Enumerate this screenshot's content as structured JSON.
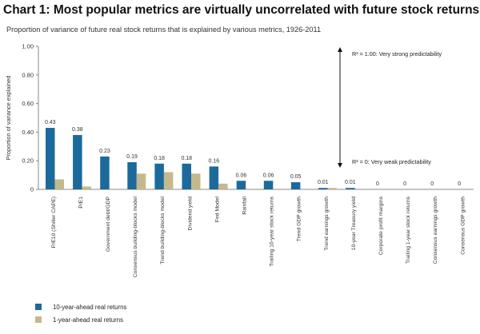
{
  "header": {
    "title": "Chart 1:  Most popular metrics are virtually uncorrelated with future stock returns",
    "subtitle": "Proportion of variance of future real stock returns that is explained by various metrics, 1926-2011"
  },
  "colors": {
    "series1": "#1c6a9c",
    "series2": "#c4b98c",
    "axis": "#888888"
  },
  "annotations": {
    "strong": "R² = 1.00: Very strong predictability",
    "weak": "R² = 0: Very weak predictability"
  },
  "chart_data": {
    "type": "bar",
    "title": "Chart 1:  Most popular metrics are virtually uncorrelated with future stock returns",
    "subtitle": "Proportion of variance of future real stock returns that is explained by various metrics, 1926-2011",
    "ylabel": "Proportion of variance explained",
    "xlabel": "",
    "ylim": [
      0,
      1.0
    ],
    "yticks": [
      "0",
      "0.20",
      "0.40",
      "0.60",
      "0.80",
      "1.00"
    ],
    "categories": [
      "P/E10 (Shiller CAPE)",
      "P/E1",
      "Government debt/GDP",
      "Consensus building-blocks model",
      "Trend building-blocks model",
      "Dividend yield",
      "Fed Model",
      "Rainfall",
      "Trailing 10-year stock returns",
      "Trend GDP growth",
      "Trend earnings growth",
      "10-year Treasury yield",
      "Corporate profit margins",
      "Trailing 1-year stock returns",
      "Consensus earnings growth",
      "Consensus GDP growth"
    ],
    "series": [
      {
        "name": "10-year-ahead real returns",
        "values": [
          0.43,
          0.38,
          0.23,
          0.19,
          0.18,
          0.18,
          0.16,
          0.06,
          0.06,
          0.05,
          0.01,
          0.01,
          0,
          0,
          0,
          0
        ],
        "labels": [
          "0.43",
          "0.38",
          "0.23",
          "0.19",
          "0.18",
          "0.18",
          "0.16",
          "0.06",
          "0.06",
          "0.05",
          "0.01",
          "0.01",
          "0",
          "0",
          "0",
          "0"
        ]
      },
      {
        "name": "1-year-ahead real returns",
        "values": [
          0.07,
          0.02,
          0,
          0.11,
          0.12,
          0.11,
          0.04,
          0,
          0,
          0,
          0.01,
          0,
          0,
          0,
          0,
          0
        ]
      }
    ],
    "legend": "bottom-left"
  }
}
